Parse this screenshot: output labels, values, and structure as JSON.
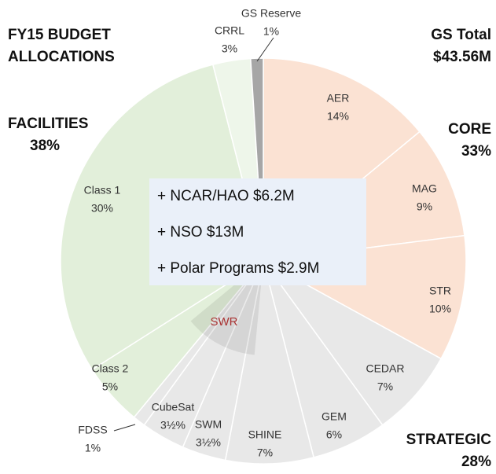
{
  "chart_data": {
    "type": "pie",
    "title": [
      "FY15 BUDGET",
      "ALLOCATIONS"
    ],
    "total_label": "GS Total",
    "total_value": "$43.56M",
    "categories": [
      "AER",
      "MAG",
      "STR",
      "CEDAR",
      "GEM",
      "SHINE",
      "SWM",
      "CubeSat",
      "FDSS",
      "Class 2",
      "Class 1",
      "CRRL",
      "GS Reserve"
    ],
    "values": [
      14,
      9,
      10,
      7,
      6,
      7,
      3.5,
      3.5,
      1,
      5,
      30,
      3,
      1
    ],
    "value_labels": [
      "14%",
      "9%",
      "10%",
      "7%",
      "6%",
      "7%",
      "3½%",
      "3½%",
      "1%",
      "5%",
      "30%",
      "3%",
      "1%"
    ],
    "colors": [
      "#fbe2d3",
      "#fbe2d3",
      "#fbe2d3",
      "#e8e8e8",
      "#e8e8e8",
      "#e8e8e8",
      "#e8e8e8",
      "#e8e8e8",
      "#e8e8e8",
      "#e2efda",
      "#e2efda",
      "#eef6ea",
      "#a6a6a6"
    ],
    "groups": [
      {
        "name": "CORE",
        "value": 33,
        "value_label": "33%"
      },
      {
        "name": "STRATEGIC",
        "value": 28,
        "value_label": "28%"
      },
      {
        "name": "FACILITIES",
        "value": 38,
        "value_label": "38%"
      }
    ],
    "subgroup_label": "SWR",
    "annotations": [
      "+ NCAR/HAO  $6.2M",
      "+ NSO  $13M",
      "+ Polar Programs  $2.9M"
    ]
  }
}
